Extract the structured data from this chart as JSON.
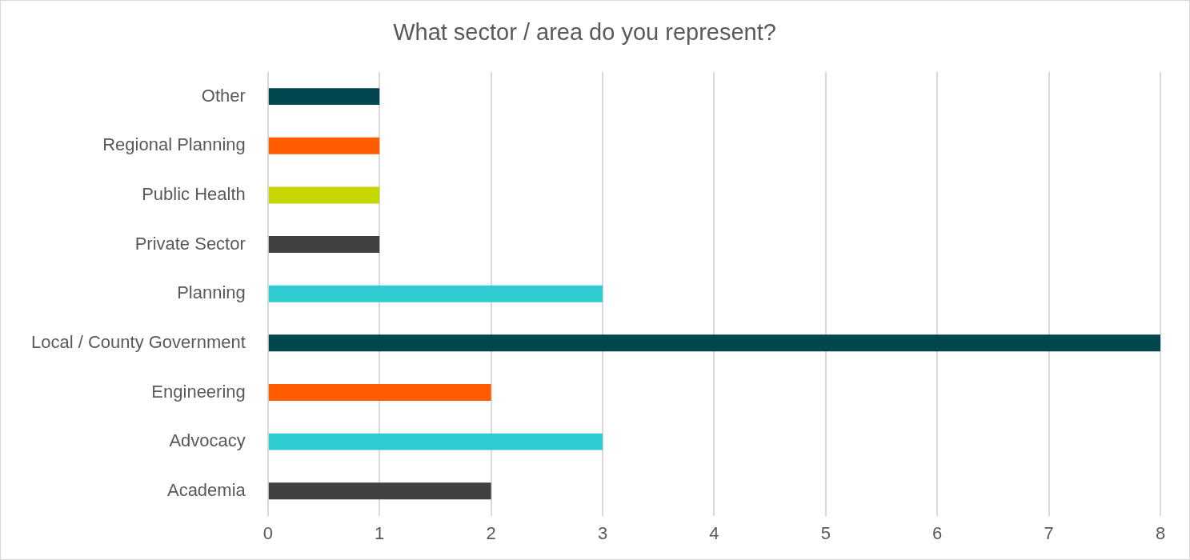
{
  "chart_data": {
    "type": "bar",
    "orientation": "horizontal",
    "title": "What sector / area do you represent?",
    "categories": [
      "Other",
      "Regional Planning",
      "Public Health",
      "Private Sector",
      "Planning",
      "Local / County Government",
      "Engineering",
      "Advocacy",
      "Academia"
    ],
    "values": [
      1,
      1,
      1,
      1,
      3,
      8,
      2,
      3,
      2
    ],
    "colors": [
      "#00464f",
      "#ff5b00",
      "#c5d600",
      "#404040",
      "#2ecbd1",
      "#00464f",
      "#ff5b00",
      "#2ecbd1",
      "#404040"
    ],
    "xlim": [
      0,
      8
    ],
    "xticks": [
      0,
      1,
      2,
      3,
      4,
      5,
      6,
      7,
      8
    ],
    "grid": "x"
  }
}
